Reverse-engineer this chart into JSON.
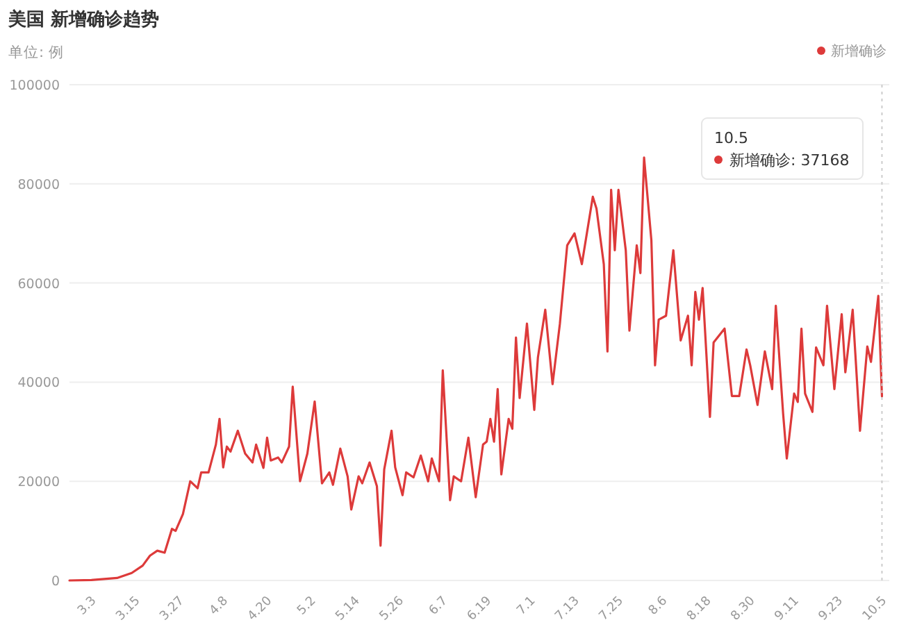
{
  "chart_data": {
    "type": "line",
    "title": "美国 新增确诊趋势",
    "subtitle": "单位: 例",
    "xlim": [
      "--02-25",
      "--10-07"
    ],
    "ylim": [
      0,
      100000
    ],
    "yticks": [
      0,
      20000,
      40000,
      60000,
      80000,
      100000
    ],
    "xticks": [
      {
        "value": "--03-03",
        "label": "3.3"
      },
      {
        "value": "--03-15",
        "label": "3.15"
      },
      {
        "value": "--03-27",
        "label": "3.27"
      },
      {
        "value": "--04-08",
        "label": "4.8"
      },
      {
        "value": "--04-20",
        "label": "4.20"
      },
      {
        "value": "--05-02",
        "label": "5.2"
      },
      {
        "value": "--05-14",
        "label": "5.14"
      },
      {
        "value": "--05-26",
        "label": "5.26"
      },
      {
        "value": "--06-07",
        "label": "6.7"
      },
      {
        "value": "--06-19",
        "label": "6.19"
      },
      {
        "value": "--07-01",
        "label": "7.1"
      },
      {
        "value": "--07-13",
        "label": "7.13"
      },
      {
        "value": "--07-25",
        "label": "7.25"
      },
      {
        "value": "--08-06",
        "label": "8.6"
      },
      {
        "value": "--08-18",
        "label": "8.18"
      },
      {
        "value": "--08-30",
        "label": "8.30"
      },
      {
        "value": "--09-11",
        "label": "9.11"
      },
      {
        "value": "--09-23",
        "label": "9.23"
      },
      {
        "value": "--10-05",
        "label": "10.5"
      }
    ],
    "grid": "y",
    "legend": "top right",
    "marker": "none",
    "line_style": "solid",
    "annotations": [
      "10.5\n新增确诊: 37168"
    ],
    "ref_lines": [
      {
        "axis": "x",
        "value": "--10-05",
        "color": "#cccccc",
        "line_style": "dotted"
      }
    ],
    "series": [
      {
        "name": "新增确诊",
        "color": "#dd3a3a",
        "x": [
          "--02-25",
          "--03-03",
          "--03-10",
          "--03-14",
          "--03-17",
          "--03-19",
          "--03-21",
          "--03-23",
          "--03-25",
          "--03-26",
          "--03-28",
          "--03-30",
          "--04-01",
          "--04-02",
          "--04-04",
          "--04-06",
          "--04-07",
          "--04-08",
          "--04-09",
          "--04-10",
          "--04-12",
          "--04-14",
          "--04-16",
          "--04-17",
          "--04-19",
          "--04-20",
          "--04-21",
          "--04-23",
          "--04-24",
          "--04-26",
          "--04-27",
          "--04-29",
          "--05-01",
          "--05-03",
          "--05-05",
          "--05-07",
          "--05-08",
          "--05-10",
          "--05-12",
          "--05-13",
          "--05-15",
          "--05-16",
          "--05-18",
          "--05-20",
          "--05-21",
          "--05-22",
          "--05-24",
          "--05-25",
          "--05-27",
          "--05-28",
          "--05-30",
          "--06-01",
          "--06-03",
          "--06-04",
          "--06-06",
          "--06-07",
          "--06-09",
          "--06-10",
          "--06-12",
          "--06-14",
          "--06-16",
          "--06-18",
          "--06-19",
          "--06-20",
          "--06-21",
          "--06-22",
          "--06-23",
          "--06-25",
          "--06-26",
          "--06-27",
          "--06-28",
          "--06-30",
          "--07-02",
          "--07-03",
          "--07-05",
          "--07-07",
          "--07-09",
          "--07-11",
          "--07-13",
          "--07-15",
          "--07-18",
          "--07-19",
          "--07-21",
          "--07-22",
          "--07-23",
          "--07-24",
          "--07-25",
          "--07-27",
          "--07-28",
          "--07-30",
          "--07-31",
          "--08-01",
          "--08-03",
          "--08-04",
          "--08-05",
          "--08-07",
          "--08-09",
          "--08-11",
          "--08-13",
          "--08-14",
          "--08-15",
          "--08-16",
          "--08-17",
          "--08-19",
          "--08-20",
          "--08-23",
          "--08-25",
          "--08-27",
          "--08-29",
          "--08-30",
          "--09-01",
          "--09-03",
          "--09-05",
          "--09-06",
          "--09-08",
          "--09-09",
          "--09-11",
          "--09-12",
          "--09-13",
          "--09-14",
          "--09-16",
          "--09-17",
          "--09-19",
          "--09-20",
          "--09-22",
          "--09-24",
          "--09-25",
          "--09-27",
          "--09-29",
          "--10-01",
          "--10-02",
          "--10-04",
          "--10-05"
        ],
        "values": [
          0,
          100,
          500,
          1500,
          3000,
          5000,
          6000,
          5600,
          10400,
          10000,
          13400,
          20000,
          18600,
          21800,
          21800,
          27400,
          32600,
          22800,
          27000,
          26000,
          30200,
          25600,
          23800,
          27400,
          22700,
          28800,
          24200,
          24800,
          23800,
          27000,
          39100,
          20000,
          25600,
          36100,
          19600,
          21800,
          19300,
          26600,
          21000,
          14300,
          21000,
          19600,
          23800,
          19000,
          7000,
          22400,
          30200,
          22800,
          17200,
          21800,
          20800,
          25200,
          20000,
          24600,
          20000,
          42400,
          16200,
          21000,
          20000,
          28800,
          16800,
          27400,
          28000,
          32600,
          28000,
          38600,
          21400,
          32600,
          30600,
          49000,
          36800,
          51800,
          34400,
          45000,
          54600,
          39600,
          51800,
          67600,
          70000,
          63800,
          77400,
          75000,
          63800,
          46200,
          78800,
          66600,
          78800,
          66600,
          50400,
          67600,
          62000,
          85300,
          68600,
          43400,
          52600,
          53400,
          66600,
          48400,
          53400,
          43400,
          58200,
          52600,
          59000,
          33000,
          48000,
          50800,
          37200,
          37200,
          46600,
          43400,
          35400,
          46200,
          38600,
          55400,
          33600,
          24600,
          37700,
          36000,
          50800,
          37700,
          34000,
          47000,
          43400,
          55400,
          38600,
          53700,
          42000,
          54600,
          30200,
          47200,
          44100,
          57400,
          37168
        ]
      }
    ]
  }
}
